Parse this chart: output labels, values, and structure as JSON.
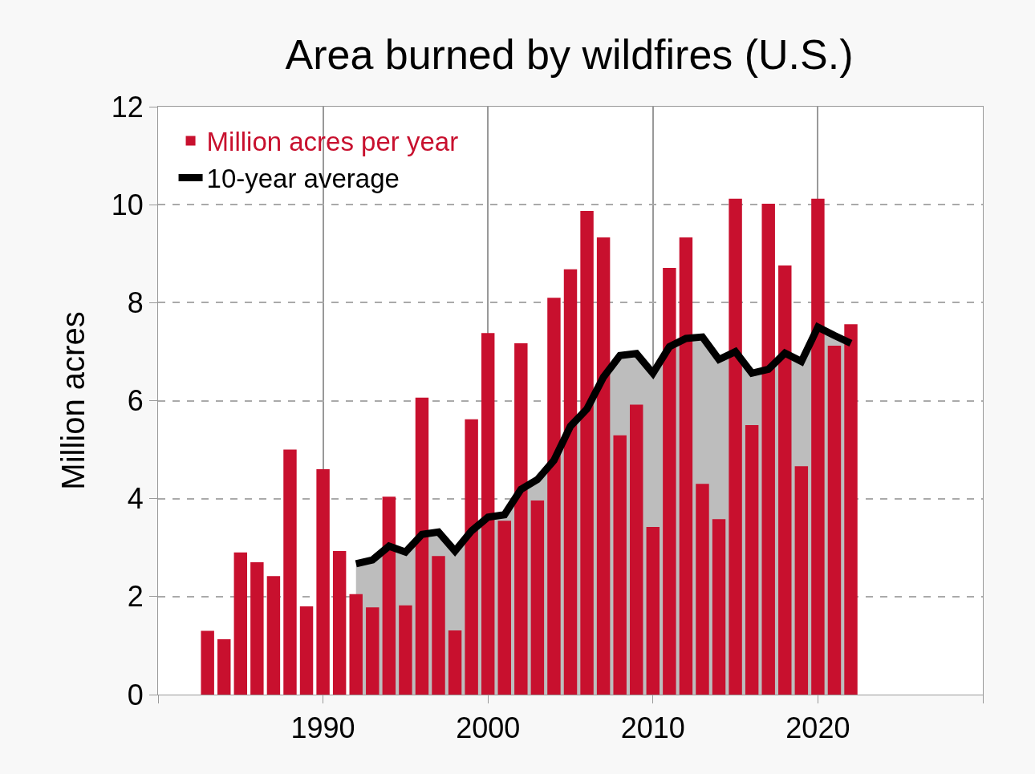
{
  "chart_data": {
    "type": "bar",
    "title": "Area burned by wildfires (U.S.)",
    "ylabel": "Million acres",
    "x": [
      1983,
      1984,
      1985,
      1986,
      1987,
      1988,
      1989,
      1990,
      1991,
      1992,
      1993,
      1994,
      1995,
      1996,
      1997,
      1998,
      1999,
      2000,
      2001,
      2002,
      2003,
      2004,
      2005,
      2006,
      2007,
      2008,
      2009,
      2010,
      2011,
      2012,
      2013,
      2014,
      2015,
      2016,
      2017,
      2018,
      2019,
      2020,
      2021,
      2022
    ],
    "series": [
      {
        "name": "Million acres per year",
        "color": "#c8102e",
        "values": [
          1.3,
          1.13,
          2.9,
          2.7,
          2.42,
          5.0,
          1.8,
          4.6,
          2.93,
          2.05,
          1.78,
          4.04,
          1.82,
          6.06,
          2.83,
          1.31,
          5.62,
          7.38,
          3.55,
          7.17,
          3.96,
          8.1,
          8.68,
          9.87,
          9.33,
          5.29,
          5.92,
          3.42,
          8.71,
          9.33,
          4.3,
          3.58,
          10.12,
          5.5,
          10.02,
          8.76,
          4.66,
          10.12,
          7.12,
          7.56
        ]
      },
      {
        "name": "10-year average",
        "type": "area",
        "color": "#000000",
        "x": [
          1992,
          1993,
          1994,
          1995,
          1996,
          1997,
          1998,
          1999,
          2000,
          2001,
          2002,
          2003,
          2004,
          2005,
          2006,
          2007,
          2008,
          2009,
          2010,
          2011,
          2012,
          2013,
          2014,
          2015,
          2016,
          2017,
          2018,
          2019,
          2020,
          2021,
          2022
        ],
        "values": [
          2.67,
          2.75,
          3.03,
          2.91,
          3.27,
          3.32,
          2.93,
          3.34,
          3.62,
          3.67,
          4.19,
          4.39,
          4.78,
          5.48,
          5.83,
          6.48,
          6.92,
          6.96,
          6.56,
          7.1,
          7.27,
          7.3,
          6.84,
          7.0,
          6.56,
          6.64,
          6.97,
          6.8,
          7.5,
          7.33,
          7.17
        ]
      }
    ],
    "xlim": [
      1980,
      2030
    ],
    "xticks": [
      {
        "value": 1980,
        "label": null
      },
      1990,
      2000,
      2010,
      2020,
      {
        "value": 2030,
        "label": null
      }
    ],
    "ylim": [
      0,
      12
    ],
    "yticks": [
      0,
      2,
      4,
      6,
      8,
      10,
      12
    ],
    "grid": true,
    "legend": "top left"
  }
}
